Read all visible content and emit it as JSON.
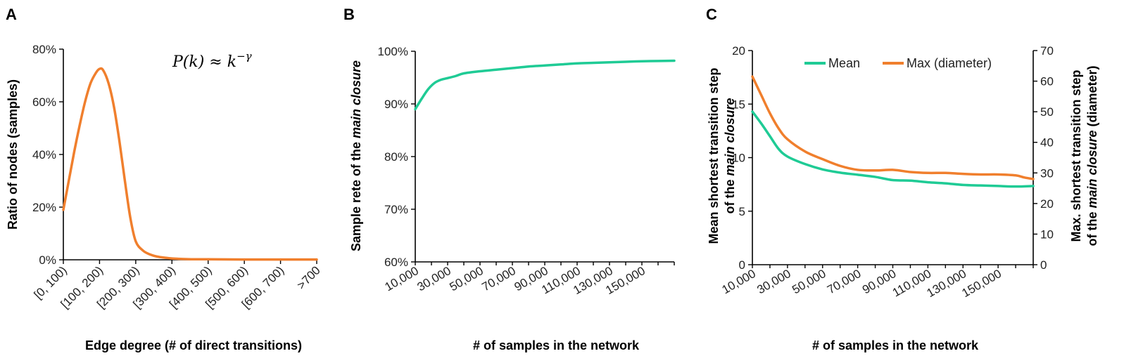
{
  "colors": {
    "orange": "#F07F2D",
    "green": "#1FCB95",
    "axis": "#000000"
  },
  "chart_data": [
    {
      "panel": "A",
      "type": "line",
      "annotation": "P(k) ≈ k^(−γ)",
      "annotation_main": "P(k) ≈ k",
      "annotation_sup": "−γ",
      "xlabel": "Edge degree (# of direct transitions)",
      "ylabel": "Ratio of nodes (samples)",
      "categories": [
        "[0, 100)",
        "[100, 200)",
        "[200, 300)",
        "[300, 400)",
        "[400, 500)",
        "[500, 600)",
        "[600, 700)",
        ">700"
      ],
      "ylim": [
        0,
        80
      ],
      "yticks": [
        0,
        20,
        40,
        60,
        80
      ],
      "ytick_labels": [
        "0%",
        "20%",
        "40%",
        "60%",
        "80%"
      ],
      "series": [
        {
          "color": "#F07F2D",
          "x": [
            0,
            0.15,
            0.3,
            0.45,
            0.6,
            0.75,
            0.9,
            1.0,
            1.1,
            1.25,
            1.4,
            1.55,
            1.7,
            1.85,
            2.0,
            2.2,
            2.4,
            2.6,
            2.8,
            3.0,
            3.3,
            3.6,
            4,
            5,
            6,
            7
          ],
          "y": [
            19,
            30,
            41,
            51,
            60,
            67,
            71,
            72.5,
            72,
            67,
            58,
            45,
            30,
            16,
            7,
            3.5,
            2,
            1.2,
            0.8,
            0.5,
            0.3,
            0.2,
            0.2,
            0.1,
            0.1,
            0.1
          ]
        }
      ]
    },
    {
      "panel": "B",
      "type": "line",
      "xlabel": "# of samples in the network",
      "ylabel_plain": "Sample rete of the ",
      "ylabel_italic": "main closure",
      "x_ticks": [
        10000,
        30000,
        50000,
        70000,
        90000,
        110000,
        130000,
        150000
      ],
      "x_tick_labels": [
        "10,000",
        "30,000",
        "50,000",
        "70,000",
        "90,000",
        "110,000",
        "130,000",
        "150,000"
      ],
      "xlim": [
        10000,
        170000
      ],
      "ylim": [
        60,
        100
      ],
      "yticks": [
        60,
        70,
        80,
        90,
        100
      ],
      "ytick_labels": [
        "60%",
        "70%",
        "80%",
        "90%",
        "100%"
      ],
      "series": [
        {
          "color": "#1FCB95",
          "x": [
            10000,
            14000,
            18000,
            22000,
            26000,
            30000,
            35000,
            40000,
            50000,
            60000,
            70000,
            80000,
            90000,
            100000,
            110000,
            120000,
            130000,
            140000,
            150000,
            160000,
            170000
          ],
          "y": [
            89,
            91,
            92.8,
            94,
            94.6,
            94.9,
            95.3,
            95.8,
            96.2,
            96.5,
            96.8,
            97.1,
            97.3,
            97.5,
            97.7,
            97.8,
            97.9,
            98.0,
            98.1,
            98.15,
            98.2
          ]
        }
      ]
    },
    {
      "panel": "C",
      "type": "line",
      "xlabel": "# of samples in the network",
      "ylabel_left_line1": "Mean shortest transition step",
      "ylabel_left_line2_plain": "of the ",
      "ylabel_left_line2_italic": "main closure",
      "ylabel_right_line1": "Max. shortest transition step",
      "ylabel_right_line2_plain": "of the ",
      "ylabel_right_line2_italic": "main closure",
      "ylabel_right_line2_end": " (diameter)",
      "x_ticks": [
        10000,
        30000,
        50000,
        70000,
        90000,
        110000,
        130000,
        150000
      ],
      "x_tick_labels": [
        "10,000",
        "30,000",
        "50,000",
        "70,000",
        "90,000",
        "110,000",
        "130,000",
        "150,000"
      ],
      "xlim": [
        10000,
        170000
      ],
      "ylim_left": [
        0,
        20
      ],
      "yticks_left": [
        0,
        5,
        10,
        15,
        20
      ],
      "ytick_labels_left": [
        "0",
        "5",
        "10",
        "15",
        "20"
      ],
      "ylim_right": [
        0,
        70
      ],
      "yticks_right": [
        0,
        10,
        20,
        30,
        40,
        50,
        60,
        70
      ],
      "ytick_labels_right": [
        "0",
        "10",
        "20",
        "30",
        "40",
        "50",
        "60",
        "70"
      ],
      "legend_position": "top",
      "series": [
        {
          "name": "Mean",
          "color": "#1FCB95",
          "axis": "left",
          "x": [
            10000,
            15000,
            20000,
            25000,
            30000,
            40000,
            50000,
            60000,
            70000,
            80000,
            90000,
            100000,
            110000,
            120000,
            130000,
            140000,
            150000,
            160000,
            170000
          ],
          "y": [
            14.3,
            13.2,
            12.0,
            10.8,
            10.1,
            9.4,
            8.9,
            8.6,
            8.4,
            8.2,
            7.9,
            7.85,
            7.7,
            7.6,
            7.45,
            7.4,
            7.35,
            7.3,
            7.35
          ]
        },
        {
          "name": "Max (diameter)",
          "color": "#F07F2D",
          "axis": "right",
          "x": [
            10000,
            15000,
            20000,
            25000,
            30000,
            40000,
            50000,
            60000,
            70000,
            80000,
            90000,
            100000,
            110000,
            120000,
            130000,
            140000,
            150000,
            160000,
            165000,
            170000
          ],
          "y": [
            61.5,
            55.5,
            49.5,
            44.5,
            41,
            37,
            34.5,
            32.3,
            31,
            30.8,
            31,
            30.3,
            30,
            30,
            29.7,
            29.5,
            29.5,
            29.2,
            28.5,
            28
          ]
        }
      ]
    }
  ]
}
